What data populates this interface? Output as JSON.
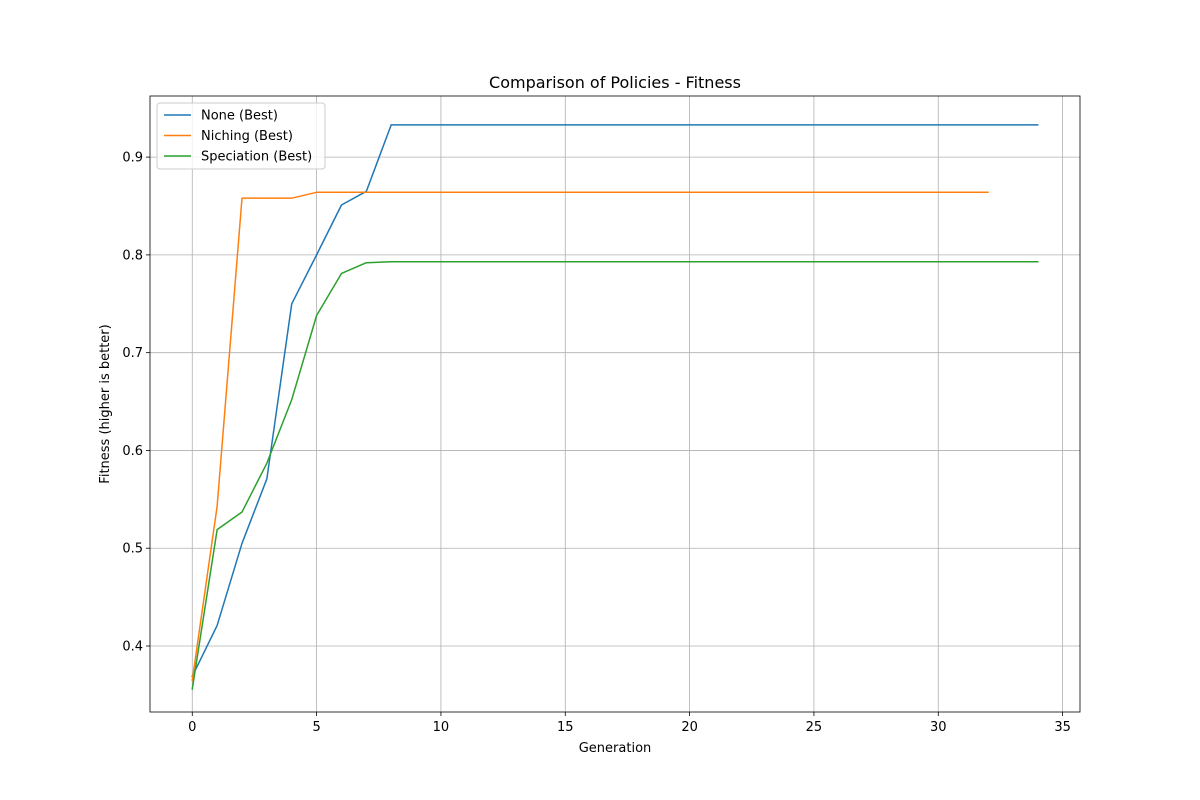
{
  "chart_data": {
    "type": "line",
    "title": "Comparison of Policies - Fitness",
    "xlabel": "Generation",
    "ylabel": "Fitness (higher is better)",
    "xlim": [
      -1.7,
      35.7
    ],
    "ylim": [
      0.3325,
      0.9625
    ],
    "xticks": [
      0,
      5,
      10,
      15,
      20,
      25,
      30,
      35
    ],
    "yticks": [
      0.4,
      0.5,
      0.6,
      0.7,
      0.8,
      0.9
    ],
    "xtick_labels": [
      "0",
      "5",
      "10",
      "15",
      "20",
      "25",
      "30",
      "35"
    ],
    "ytick_labels": [
      "0.4",
      "0.5",
      "0.6",
      "0.7",
      "0.8",
      "0.9"
    ],
    "grid": true,
    "legend_position": "top-left",
    "series": [
      {
        "name": "None (Best)",
        "color": "#1f77b4",
        "x": [
          0,
          1,
          2,
          3,
          4,
          5,
          6,
          7,
          8,
          9,
          10,
          11,
          12,
          13,
          14,
          15,
          16,
          17,
          18,
          19,
          20,
          21,
          22,
          23,
          24,
          25,
          26,
          27,
          28,
          29,
          30,
          31,
          32,
          33,
          34
        ],
        "values": [
          0.369,
          0.421,
          0.505,
          0.571,
          0.75,
          0.8,
          0.851,
          0.865,
          0.933,
          0.933,
          0.933,
          0.933,
          0.933,
          0.933,
          0.933,
          0.933,
          0.933,
          0.933,
          0.933,
          0.933,
          0.933,
          0.933,
          0.933,
          0.933,
          0.933,
          0.933,
          0.933,
          0.933,
          0.933,
          0.933,
          0.933,
          0.933,
          0.933,
          0.933,
          0.933
        ]
      },
      {
        "name": "Niching (Best)",
        "color": "#ff7f0e",
        "x": [
          0,
          1,
          2,
          3,
          4,
          5,
          6,
          7,
          8,
          9,
          10,
          11,
          12,
          13,
          14,
          15,
          16,
          17,
          18,
          19,
          20,
          21,
          22,
          23,
          24,
          25,
          26,
          27,
          28,
          29,
          30,
          31,
          32
        ],
        "values": [
          0.365,
          0.543,
          0.858,
          0.858,
          0.858,
          0.864,
          0.864,
          0.864,
          0.864,
          0.864,
          0.864,
          0.864,
          0.864,
          0.864,
          0.864,
          0.864,
          0.864,
          0.864,
          0.864,
          0.864,
          0.864,
          0.864,
          0.864,
          0.864,
          0.864,
          0.864,
          0.864,
          0.864,
          0.864,
          0.864,
          0.864,
          0.864,
          0.864
        ]
      },
      {
        "name": "Speciation (Best)",
        "color": "#2ca02c",
        "x": [
          0,
          1,
          2,
          3,
          4,
          5,
          6,
          7,
          8,
          9,
          10,
          11,
          12,
          13,
          14,
          15,
          16,
          17,
          18,
          19,
          20,
          21,
          22,
          23,
          24,
          25,
          26,
          27,
          28,
          29,
          30,
          31,
          32,
          33,
          34
        ],
        "values": [
          0.356,
          0.519,
          0.537,
          0.587,
          0.652,
          0.738,
          0.781,
          0.792,
          0.793,
          0.793,
          0.793,
          0.793,
          0.793,
          0.793,
          0.793,
          0.793,
          0.793,
          0.793,
          0.793,
          0.793,
          0.793,
          0.793,
          0.793,
          0.793,
          0.793,
          0.793,
          0.793,
          0.793,
          0.793,
          0.793,
          0.793,
          0.793,
          0.793,
          0.793,
          0.793
        ]
      }
    ]
  }
}
